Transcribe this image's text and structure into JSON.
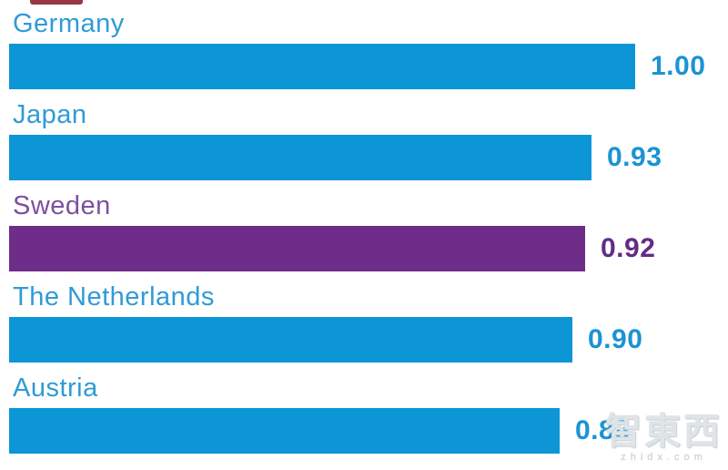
{
  "chart_data": {
    "type": "bar",
    "orientation": "horizontal",
    "title": "",
    "xlabel": "",
    "ylabel": "",
    "categories": [
      "Germany",
      "Japan",
      "Sweden",
      "The Netherlands",
      "Austria"
    ],
    "values": [
      1.0,
      0.93,
      0.92,
      0.9,
      0.88
    ],
    "value_labels": [
      "1.00",
      "0.93",
      "0.92",
      "0.90",
      "0.88"
    ],
    "xlim": [
      0,
      1
    ],
    "grid": false,
    "legend": false,
    "axes_visible": false,
    "highlight_index": 2,
    "colors": {
      "bar": "#0c96d6",
      "bar_highlight": "#6e2d89",
      "label": "#2f9bd6",
      "label_highlight": "#7d4fa0",
      "value": "#1b93d4",
      "value_highlight": "#632c85"
    }
  },
  "watermark": {
    "text": "智東西",
    "domain": "zhidx.com"
  },
  "artifact": {
    "color": "#8a2430"
  }
}
